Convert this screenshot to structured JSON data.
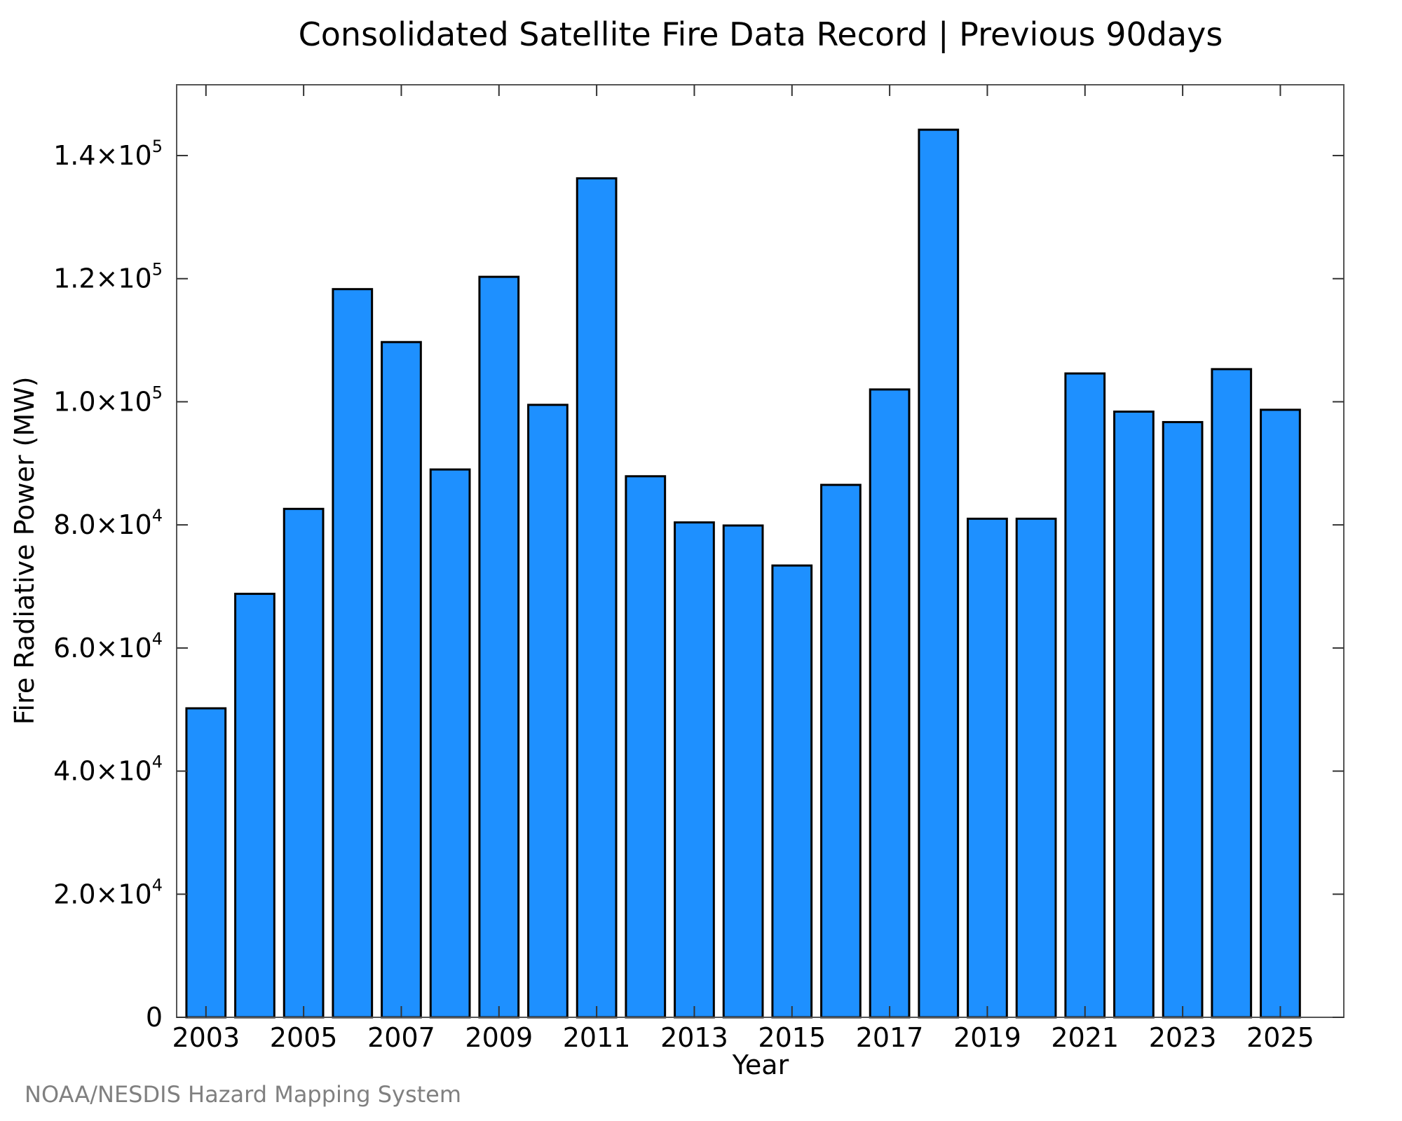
{
  "chart_data": {
    "type": "bar",
    "title": "Consolidated Satellite Fire Data Record | Previous 90days",
    "xlabel": "Year",
    "ylabel": "Fire Radiative Power (MW)",
    "categories": [
      "2003",
      "2004",
      "2005",
      "2006",
      "2007",
      "2008",
      "2009",
      "2010",
      "2011",
      "2012",
      "2013",
      "2014",
      "2015",
      "2016",
      "2017",
      "2018",
      "2019",
      "2020",
      "2021",
      "2022",
      "2023",
      "2024",
      "2025"
    ],
    "values": [
      50200,
      68800,
      82600,
      118300,
      109700,
      89000,
      120300,
      99500,
      136300,
      87900,
      80400,
      79900,
      73400,
      86500,
      102000,
      144200,
      81000,
      81000,
      104600,
      98400,
      96700,
      105300,
      98700
    ],
    "x_tick_labels": [
      "2003",
      "2005",
      "2007",
      "2009",
      "2011",
      "2013",
      "2015",
      "2017",
      "2019",
      "2021",
      "2023",
      "2025"
    ],
    "y_ticks": [
      {
        "value": 0,
        "mantissa": "0",
        "exponent": ""
      },
      {
        "value": 20000,
        "mantissa": "2.0×10",
        "exponent": "4"
      },
      {
        "value": 40000,
        "mantissa": "4.0×10",
        "exponent": "4"
      },
      {
        "value": 60000,
        "mantissa": "6.0×10",
        "exponent": "4"
      },
      {
        "value": 80000,
        "mantissa": "8.0×10",
        "exponent": "4"
      },
      {
        "value": 100000,
        "mantissa": "1.0×10",
        "exponent": "5"
      },
      {
        "value": 120000,
        "mantissa": "1.2×10",
        "exponent": "5"
      },
      {
        "value": 140000,
        "mantissa": "1.4×10",
        "exponent": "5"
      }
    ],
    "ylim": [
      0,
      151500
    ],
    "xlim": [
      2002.4,
      2026.3
    ],
    "grid": false,
    "bar_color": "#1e90ff",
    "bar_edge_color": "#000000"
  },
  "credit": "NOAA/NESDIS Hazard Mapping System"
}
